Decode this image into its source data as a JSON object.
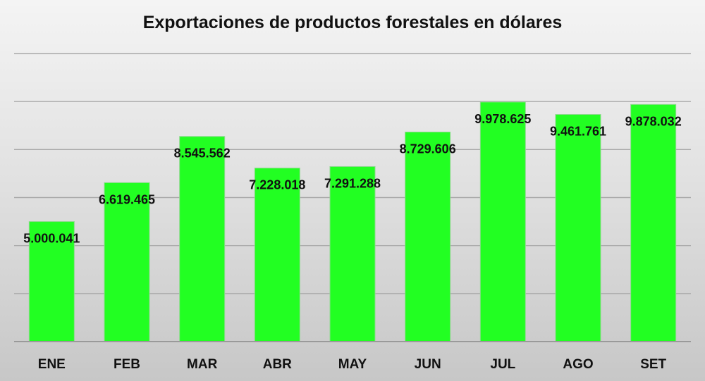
{
  "chart_data": {
    "type": "bar",
    "title": "Exportaciones de productos forestales en dólares",
    "categories": [
      "ENE",
      "FEB",
      "MAR",
      "ABR",
      "MAY",
      "JUN",
      "JUL",
      "AGO",
      "SET"
    ],
    "values": [
      5000041,
      6619465,
      8545562,
      7228018,
      7291288,
      8729606,
      9978625,
      9461761,
      9878032
    ],
    "data_labels": [
      "5.000.041",
      "6.619.465",
      "8.545.562",
      "7.228.018",
      "7.291.288",
      "8.729.606",
      "9.978.625",
      "9.461.761",
      "9.878.032"
    ],
    "ylim": [
      0,
      12000000
    ],
    "y_gridline_step": 2000000,
    "grid": true,
    "y_tick_labels_visible": false,
    "legend": false,
    "colors": {
      "bar": "#22ff22",
      "bar_edge": "#8fd98f",
      "grid": "#a9a9a9"
    }
  }
}
